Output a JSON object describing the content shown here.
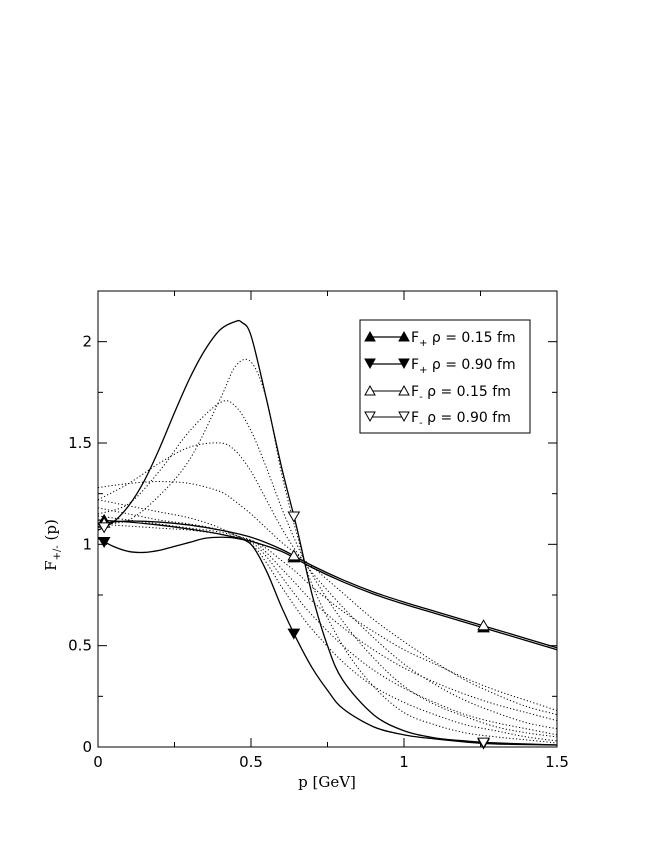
{
  "chart_data": {
    "type": "line",
    "xlabel_main": "p [GeV]",
    "ylabel_main": "F",
    "ylabel_sub": "+/-",
    "ylabel_arg": " (p)",
    "xlim": [
      0,
      1.5
    ],
    "ylim": [
      0,
      2.25
    ],
    "x_ticks": [
      {
        "value": 0,
        "label": "0"
      },
      {
        "value": 0.5,
        "label": "0.5"
      },
      {
        "value": 1,
        "label": "1"
      },
      {
        "value": 1.5,
        "label": "1.5"
      }
    ],
    "y_ticks": [
      {
        "value": 0,
        "label": "0"
      },
      {
        "value": 0.5,
        "label": "0.5"
      },
      {
        "value": 1,
        "label": "1"
      },
      {
        "value": 1.5,
        "label": "1.5"
      },
      {
        "value": 2,
        "label": "2"
      }
    ],
    "legend_position": "top-right",
    "series": [
      {
        "legend_main": "F",
        "legend_sub": "+",
        "legend_rest": " ρ = 0.15 fm",
        "marker": "triangle-up",
        "filled": true,
        "style": "solid",
        "x": [
          0,
          0.05,
          0.1,
          0.2,
          0.3,
          0.4,
          0.5,
          0.6,
          0.7,
          0.8,
          0.9,
          1.0,
          1.1,
          1.2,
          1.3,
          1.4,
          1.5
        ],
        "y": [
          1.12,
          1.115,
          1.11,
          1.095,
          1.075,
          1.05,
          1.015,
          0.965,
          0.885,
          0.815,
          0.755,
          0.705,
          0.66,
          0.615,
          0.57,
          0.525,
          0.48
        ],
        "marker_x": [
          0.02,
          0.64,
          1.26
        ]
      },
      {
        "legend_main": "F",
        "legend_sub": "+",
        "legend_rest": " ρ = 0.90 fm",
        "marker": "triangle-down",
        "filled": true,
        "style": "solid",
        "x": [
          0,
          0.05,
          0.1,
          0.15,
          0.2,
          0.25,
          0.3,
          0.35,
          0.4,
          0.45,
          0.5,
          0.55,
          0.6,
          0.65,
          0.7,
          0.75,
          0.8,
          0.9,
          1.0,
          1.1,
          1.2,
          1.3,
          1.5
        ],
        "y": [
          1.03,
          0.99,
          0.965,
          0.96,
          0.97,
          0.99,
          1.01,
          1.03,
          1.035,
          1.03,
          1.0,
          0.87,
          0.69,
          0.53,
          0.39,
          0.28,
          0.19,
          0.1,
          0.06,
          0.04,
          0.025,
          0.015,
          0.01
        ],
        "marker_x": [
          0.02,
          0.64,
          1.26
        ]
      },
      {
        "legend_main": "F",
        "legend_sub": "-",
        "legend_rest": " ρ = 0.15 fm",
        "marker": "triangle-up",
        "filled": false,
        "style": "solid",
        "x": [
          0,
          0.05,
          0.1,
          0.2,
          0.3,
          0.4,
          0.5,
          0.6,
          0.7,
          0.8,
          0.9,
          1.0,
          1.1,
          1.2,
          1.3,
          1.4,
          1.5
        ],
        "y": [
          1.1,
          1.11,
          1.115,
          1.11,
          1.095,
          1.07,
          1.035,
          0.975,
          0.895,
          0.825,
          0.765,
          0.715,
          0.67,
          0.625,
          0.58,
          0.535,
          0.49
        ],
        "marker_x": [
          0.02,
          0.64,
          1.26
        ]
      },
      {
        "legend_main": "F",
        "legend_sub": "-",
        "legend_rest": " ρ = 0.90 fm",
        "marker": "triangle-down",
        "filled": false,
        "style": "solid",
        "x": [
          0,
          0.05,
          0.1,
          0.15,
          0.2,
          0.25,
          0.3,
          0.35,
          0.4,
          0.45,
          0.47,
          0.5,
          0.55,
          0.6,
          0.65,
          0.7,
          0.75,
          0.8,
          0.9,
          1.0,
          1.1,
          1.2,
          1.3,
          1.5
        ],
        "y": [
          1.07,
          1.11,
          1.19,
          1.31,
          1.47,
          1.65,
          1.82,
          1.96,
          2.06,
          2.1,
          2.095,
          2.03,
          1.72,
          1.38,
          1.08,
          0.75,
          0.5,
          0.33,
          0.16,
          0.08,
          0.045,
          0.03,
          0.02,
          0.01
        ],
        "marker_x": [
          0.02,
          0.64,
          1.26
        ]
      },
      {
        "style": "dotted",
        "x": [
          0,
          0.1,
          0.2,
          0.3,
          0.4,
          0.45,
          0.5,
          0.55,
          0.6,
          0.65,
          0.7,
          0.8,
          0.9,
          1.0,
          1.1,
          1.2,
          1.3,
          1.4,
          1.5
        ],
        "y": [
          1.1,
          1.12,
          1.24,
          1.42,
          1.72,
          1.88,
          1.9,
          1.72,
          1.35,
          1.05,
          0.8,
          0.5,
          0.3,
          0.17,
          0.11,
          0.07,
          0.05,
          0.035,
          0.02
        ]
      },
      {
        "style": "dotted",
        "x": [
          0,
          0.1,
          0.2,
          0.3,
          0.4,
          0.45,
          0.5,
          0.55,
          0.6,
          0.65,
          0.7,
          0.8,
          0.9,
          1.0,
          1.1,
          1.2,
          1.3,
          1.4,
          1.5
        ],
        "y": [
          1.15,
          1.2,
          1.36,
          1.56,
          1.7,
          1.68,
          1.56,
          1.38,
          1.18,
          1.0,
          0.85,
          0.62,
          0.44,
          0.3,
          0.21,
          0.15,
          0.1,
          0.07,
          0.05
        ]
      },
      {
        "style": "dotted",
        "x": [
          0,
          0.1,
          0.2,
          0.3,
          0.4,
          0.45,
          0.5,
          0.55,
          0.6,
          0.65,
          0.7,
          0.8,
          0.9,
          1.0,
          1.1,
          1.2,
          1.3,
          1.4,
          1.5
        ],
        "y": [
          1.22,
          1.3,
          1.4,
          1.48,
          1.5,
          1.46,
          1.36,
          1.22,
          1.08,
          0.96,
          0.86,
          0.69,
          0.54,
          0.41,
          0.31,
          0.23,
          0.17,
          0.12,
          0.09
        ]
      },
      {
        "style": "dotted",
        "x": [
          0,
          0.1,
          0.2,
          0.3,
          0.4,
          0.45,
          0.5,
          0.55,
          0.6,
          0.65,
          0.7,
          0.8,
          0.9,
          1.0,
          1.1,
          1.2,
          1.3,
          1.4,
          1.5
        ],
        "y": [
          1.28,
          1.3,
          1.31,
          1.3,
          1.26,
          1.21,
          1.15,
          1.08,
          1.01,
          0.95,
          0.89,
          0.76,
          0.63,
          0.52,
          0.42,
          0.33,
          0.26,
          0.2,
          0.16
        ]
      },
      {
        "style": "dotted",
        "x": [
          0,
          0.1,
          0.2,
          0.3,
          0.4,
          0.5,
          0.55,
          0.6,
          0.65,
          0.7,
          0.8,
          0.9,
          1.0,
          1.1,
          1.2,
          1.3,
          1.4,
          1.5
        ],
        "y": [
          1.22,
          1.19,
          1.16,
          1.13,
          1.08,
          1.0,
          0.91,
          0.79,
          0.68,
          0.58,
          0.42,
          0.3,
          0.22,
          0.16,
          0.11,
          0.08,
          0.05,
          0.03
        ]
      },
      {
        "style": "dotted",
        "x": [
          0,
          0.1,
          0.2,
          0.3,
          0.4,
          0.5,
          0.55,
          0.6,
          0.65,
          0.7,
          0.8,
          0.9,
          1.0,
          1.1,
          1.2,
          1.3,
          1.4,
          1.5
        ],
        "y": [
          1.18,
          1.15,
          1.12,
          1.1,
          1.07,
          1.01,
          0.94,
          0.84,
          0.74,
          0.65,
          0.5,
          0.38,
          0.29,
          0.22,
          0.16,
          0.12,
          0.09,
          0.06
        ]
      },
      {
        "style": "dotted",
        "x": [
          0,
          0.1,
          0.2,
          0.3,
          0.4,
          0.5,
          0.55,
          0.6,
          0.65,
          0.7,
          0.8,
          0.9,
          1.0,
          1.1,
          1.2,
          1.3,
          1.4,
          1.5
        ],
        "y": [
          1.14,
          1.12,
          1.1,
          1.08,
          1.06,
          1.02,
          0.96,
          0.88,
          0.8,
          0.72,
          0.59,
          0.48,
          0.39,
          0.32,
          0.26,
          0.21,
          0.17,
          0.13
        ]
      },
      {
        "style": "dotted",
        "x": [
          0,
          0.1,
          0.2,
          0.3,
          0.4,
          0.5,
          0.55,
          0.6,
          0.65,
          0.7,
          0.8,
          0.9,
          1.0,
          1.1,
          1.2,
          1.3,
          1.4,
          1.5
        ],
        "y": [
          1.1,
          1.09,
          1.08,
          1.07,
          1.05,
          1.02,
          0.98,
          0.92,
          0.86,
          0.79,
          0.67,
          0.57,
          0.48,
          0.41,
          0.34,
          0.28,
          0.23,
          0.18
        ]
      }
    ]
  }
}
